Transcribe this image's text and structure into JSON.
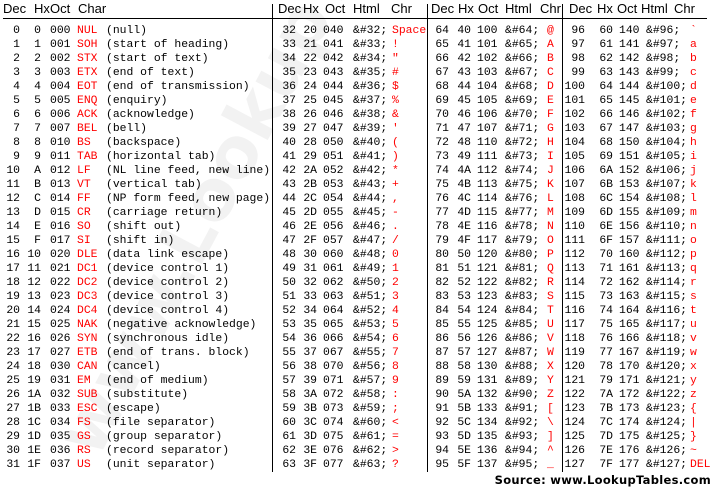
{
  "headers": [
    [
      "Dec",
      "Hx",
      "Oct",
      "Char"
    ],
    [
      "Dec",
      "Hx",
      "Oct",
      "Html",
      "Chr"
    ],
    [
      "Dec",
      "Hx",
      "Oct",
      "Html",
      "Chr"
    ],
    [
      "Dec",
      "Hx",
      "Oct",
      "Html",
      "Chr"
    ]
  ],
  "colors": {
    "text": "#000000",
    "char": "#ff0000"
  },
  "watermark": "www.LookupTables.com",
  "source": "Source:  www.LookupTables.com",
  "control_rows": [
    [
      "0",
      "0",
      "000",
      "NUL",
      "(null)"
    ],
    [
      "1",
      "1",
      "001",
      "SOH",
      "(start of heading)"
    ],
    [
      "2",
      "2",
      "002",
      "STX",
      "(start of text)"
    ],
    [
      "3",
      "3",
      "003",
      "ETX",
      "(end of text)"
    ],
    [
      "4",
      "4",
      "004",
      "EOT",
      "(end of transmission)"
    ],
    [
      "5",
      "5",
      "005",
      "ENQ",
      "(enquiry)"
    ],
    [
      "6",
      "6",
      "006",
      "ACK",
      "(acknowledge)"
    ],
    [
      "7",
      "7",
      "007",
      "BEL",
      "(bell)"
    ],
    [
      "8",
      "8",
      "010",
      "BS",
      "(backspace)"
    ],
    [
      "9",
      "9",
      "011",
      "TAB",
      "(horizontal tab)"
    ],
    [
      "10",
      "A",
      "012",
      "LF",
      "(NL line feed, new line)"
    ],
    [
      "11",
      "B",
      "013",
      "VT",
      "(vertical tab)"
    ],
    [
      "12",
      "C",
      "014",
      "FF",
      "(NP form feed, new page)"
    ],
    [
      "13",
      "D",
      "015",
      "CR",
      "(carriage return)"
    ],
    [
      "14",
      "E",
      "016",
      "SO",
      "(shift out)"
    ],
    [
      "15",
      "F",
      "017",
      "SI",
      "(shift in)"
    ],
    [
      "16",
      "10",
      "020",
      "DLE",
      "(data link escape)"
    ],
    [
      "17",
      "11",
      "021",
      "DC1",
      "(device control 1)"
    ],
    [
      "18",
      "12",
      "022",
      "DC2",
      "(device control 2)"
    ],
    [
      "19",
      "13",
      "023",
      "DC3",
      "(device control 3)"
    ],
    [
      "20",
      "14",
      "024",
      "DC4",
      "(device control 4)"
    ],
    [
      "21",
      "15",
      "025",
      "NAK",
      "(negative acknowledge)"
    ],
    [
      "22",
      "16",
      "026",
      "SYN",
      "(synchronous idle)"
    ],
    [
      "23",
      "17",
      "027",
      "ETB",
      "(end of trans. block)"
    ],
    [
      "24",
      "18",
      "030",
      "CAN",
      "(cancel)"
    ],
    [
      "25",
      "19",
      "031",
      "EM",
      "(end of medium)"
    ],
    [
      "26",
      "1A",
      "032",
      "SUB",
      "(substitute)"
    ],
    [
      "27",
      "1B",
      "033",
      "ESC",
      "(escape)"
    ],
    [
      "28",
      "1C",
      "034",
      "FS",
      "(file separator)"
    ],
    [
      "29",
      "1D",
      "035",
      "GS",
      "(group separator)"
    ],
    [
      "30",
      "1E",
      "036",
      "RS",
      "(record separator)"
    ],
    [
      "31",
      "1F",
      "037",
      "US",
      "(unit separator)"
    ]
  ],
  "sections": [
    [
      [
        "32",
        "20",
        "040",
        "&#32;",
        "Space"
      ],
      [
        "33",
        "21",
        "041",
        "&#33;",
        "!"
      ],
      [
        "34",
        "22",
        "042",
        "&#34;",
        "\""
      ],
      [
        "35",
        "23",
        "043",
        "&#35;",
        "#"
      ],
      [
        "36",
        "24",
        "044",
        "&#36;",
        "$"
      ],
      [
        "37",
        "25",
        "045",
        "&#37;",
        "%"
      ],
      [
        "38",
        "26",
        "046",
        "&#38;",
        "&"
      ],
      [
        "39",
        "27",
        "047",
        "&#39;",
        "'"
      ],
      [
        "40",
        "28",
        "050",
        "&#40;",
        "("
      ],
      [
        "41",
        "29",
        "051",
        "&#41;",
        ")"
      ],
      [
        "42",
        "2A",
        "052",
        "&#42;",
        "*"
      ],
      [
        "43",
        "2B",
        "053",
        "&#43;",
        "+"
      ],
      [
        "44",
        "2C",
        "054",
        "&#44;",
        ","
      ],
      [
        "45",
        "2D",
        "055",
        "&#45;",
        "-"
      ],
      [
        "46",
        "2E",
        "056",
        "&#46;",
        "."
      ],
      [
        "47",
        "2F",
        "057",
        "&#47;",
        "/"
      ],
      [
        "48",
        "30",
        "060",
        "&#48;",
        "0"
      ],
      [
        "49",
        "31",
        "061",
        "&#49;",
        "1"
      ],
      [
        "50",
        "32",
        "062",
        "&#50;",
        "2"
      ],
      [
        "51",
        "33",
        "063",
        "&#51;",
        "3"
      ],
      [
        "52",
        "34",
        "064",
        "&#52;",
        "4"
      ],
      [
        "53",
        "35",
        "065",
        "&#53;",
        "5"
      ],
      [
        "54",
        "36",
        "066",
        "&#54;",
        "6"
      ],
      [
        "55",
        "37",
        "067",
        "&#55;",
        "7"
      ],
      [
        "56",
        "38",
        "070",
        "&#56;",
        "8"
      ],
      [
        "57",
        "39",
        "071",
        "&#57;",
        "9"
      ],
      [
        "58",
        "3A",
        "072",
        "&#58;",
        ":"
      ],
      [
        "59",
        "3B",
        "073",
        "&#59;",
        ";"
      ],
      [
        "60",
        "3C",
        "074",
        "&#60;",
        "<"
      ],
      [
        "61",
        "3D",
        "075",
        "&#61;",
        "="
      ],
      [
        "62",
        "3E",
        "076",
        "&#62;",
        ">"
      ],
      [
        "63",
        "3F",
        "077",
        "&#63;",
        "?"
      ]
    ],
    [
      [
        "64",
        "40",
        "100",
        "&#64;",
        "@"
      ],
      [
        "65",
        "41",
        "101",
        "&#65;",
        "A"
      ],
      [
        "66",
        "42",
        "102",
        "&#66;",
        "B"
      ],
      [
        "67",
        "43",
        "103",
        "&#67;",
        "C"
      ],
      [
        "68",
        "44",
        "104",
        "&#68;",
        "D"
      ],
      [
        "69",
        "45",
        "105",
        "&#69;",
        "E"
      ],
      [
        "70",
        "46",
        "106",
        "&#70;",
        "F"
      ],
      [
        "71",
        "47",
        "107",
        "&#71;",
        "G"
      ],
      [
        "72",
        "48",
        "110",
        "&#72;",
        "H"
      ],
      [
        "73",
        "49",
        "111",
        "&#73;",
        "I"
      ],
      [
        "74",
        "4A",
        "112",
        "&#74;",
        "J"
      ],
      [
        "75",
        "4B",
        "113",
        "&#75;",
        "K"
      ],
      [
        "76",
        "4C",
        "114",
        "&#76;",
        "L"
      ],
      [
        "77",
        "4D",
        "115",
        "&#77;",
        "M"
      ],
      [
        "78",
        "4E",
        "116",
        "&#78;",
        "N"
      ],
      [
        "79",
        "4F",
        "117",
        "&#79;",
        "O"
      ],
      [
        "80",
        "50",
        "120",
        "&#80;",
        "P"
      ],
      [
        "81",
        "51",
        "121",
        "&#81;",
        "Q"
      ],
      [
        "82",
        "52",
        "122",
        "&#82;",
        "R"
      ],
      [
        "83",
        "53",
        "123",
        "&#83;",
        "S"
      ],
      [
        "84",
        "54",
        "124",
        "&#84;",
        "T"
      ],
      [
        "85",
        "55",
        "125",
        "&#85;",
        "U"
      ],
      [
        "86",
        "56",
        "126",
        "&#86;",
        "V"
      ],
      [
        "87",
        "57",
        "127",
        "&#87;",
        "W"
      ],
      [
        "88",
        "58",
        "130",
        "&#88;",
        "X"
      ],
      [
        "89",
        "59",
        "131",
        "&#89;",
        "Y"
      ],
      [
        "90",
        "5A",
        "132",
        "&#90;",
        "Z"
      ],
      [
        "91",
        "5B",
        "133",
        "&#91;",
        "["
      ],
      [
        "92",
        "5C",
        "134",
        "&#92;",
        "\\"
      ],
      [
        "93",
        "5D",
        "135",
        "&#93;",
        "]"
      ],
      [
        "94",
        "5E",
        "136",
        "&#94;",
        "^"
      ],
      [
        "95",
        "5F",
        "137",
        "&#95;",
        "_"
      ]
    ],
    [
      [
        "96",
        "60",
        "140",
        "&#96;",
        "`"
      ],
      [
        "97",
        "61",
        "141",
        "&#97;",
        "a"
      ],
      [
        "98",
        "62",
        "142",
        "&#98;",
        "b"
      ],
      [
        "99",
        "63",
        "143",
        "&#99;",
        "c"
      ],
      [
        "100",
        "64",
        "144",
        "&#100;",
        "d"
      ],
      [
        "101",
        "65",
        "145",
        "&#101;",
        "e"
      ],
      [
        "102",
        "66",
        "146",
        "&#102;",
        "f"
      ],
      [
        "103",
        "67",
        "147",
        "&#103;",
        "g"
      ],
      [
        "104",
        "68",
        "150",
        "&#104;",
        "h"
      ],
      [
        "105",
        "69",
        "151",
        "&#105;",
        "i"
      ],
      [
        "106",
        "6A",
        "152",
        "&#106;",
        "j"
      ],
      [
        "107",
        "6B",
        "153",
        "&#107;",
        "k"
      ],
      [
        "108",
        "6C",
        "154",
        "&#108;",
        "l"
      ],
      [
        "109",
        "6D",
        "155",
        "&#109;",
        "m"
      ],
      [
        "110",
        "6E",
        "156",
        "&#110;",
        "n"
      ],
      [
        "111",
        "6F",
        "157",
        "&#111;",
        "o"
      ],
      [
        "112",
        "70",
        "160",
        "&#112;",
        "p"
      ],
      [
        "113",
        "71",
        "161",
        "&#113;",
        "q"
      ],
      [
        "114",
        "72",
        "162",
        "&#114;",
        "r"
      ],
      [
        "115",
        "73",
        "163",
        "&#115;",
        "s"
      ],
      [
        "116",
        "74",
        "164",
        "&#116;",
        "t"
      ],
      [
        "117",
        "75",
        "165",
        "&#117;",
        "u"
      ],
      [
        "118",
        "76",
        "166",
        "&#118;",
        "v"
      ],
      [
        "119",
        "77",
        "167",
        "&#119;",
        "w"
      ],
      [
        "120",
        "78",
        "170",
        "&#120;",
        "x"
      ],
      [
        "121",
        "79",
        "171",
        "&#121;",
        "y"
      ],
      [
        "122",
        "7A",
        "172",
        "&#122;",
        "z"
      ],
      [
        "123",
        "7B",
        "173",
        "&#123;",
        "{"
      ],
      [
        "124",
        "7C",
        "174",
        "&#124;",
        "|"
      ],
      [
        "125",
        "7D",
        "175",
        "&#125;",
        "}"
      ],
      [
        "126",
        "7E",
        "176",
        "&#126;",
        "~"
      ],
      [
        "127",
        "7F",
        "177",
        "&#127;",
        "DEL"
      ]
    ]
  ]
}
